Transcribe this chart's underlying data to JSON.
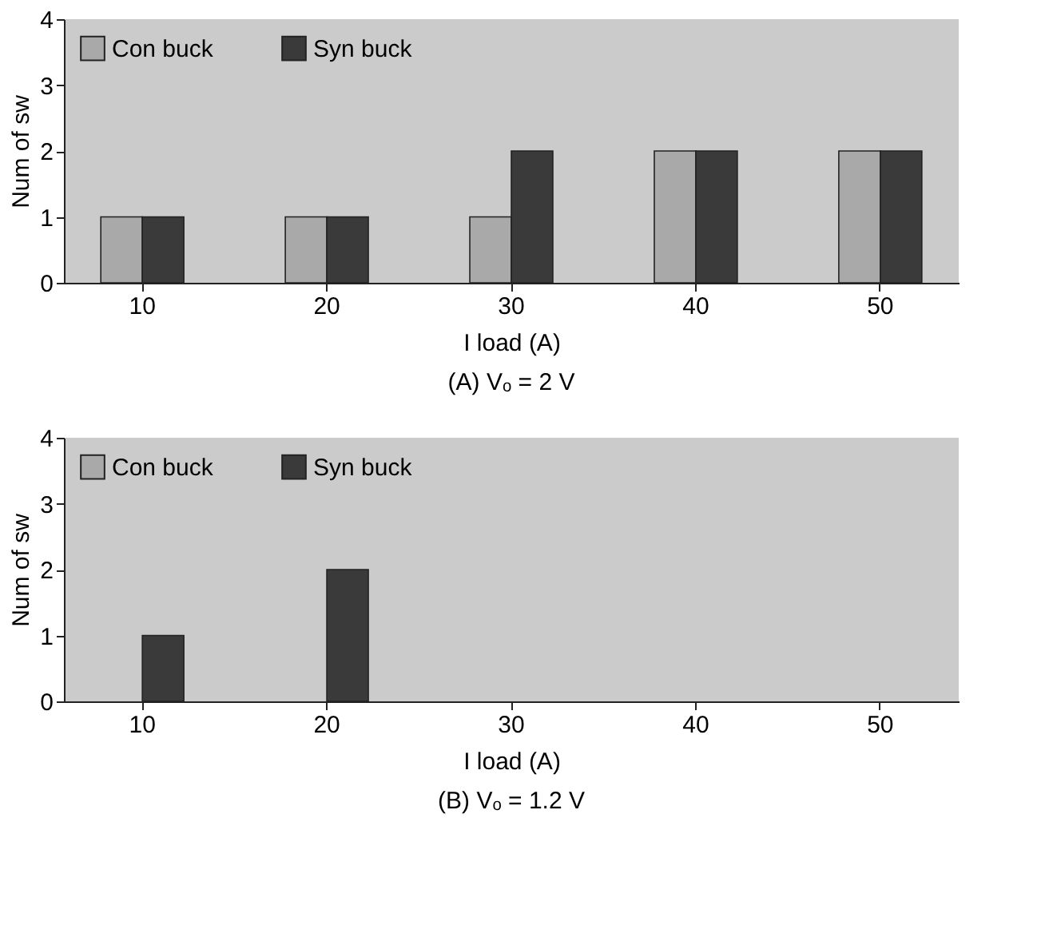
{
  "chart_data": [
    {
      "type": "bar",
      "title": "(A) Vₒ = 2 V",
      "xlabel": "I load (A)",
      "ylabel": "Num of sw",
      "categories": [
        "10",
        "20",
        "30",
        "40",
        "50"
      ],
      "ylim": [
        0,
        4
      ],
      "yticks": [
        0,
        1,
        2,
        3,
        4
      ],
      "grid": false,
      "legend": "top left",
      "series": [
        {
          "name": "Con buck",
          "color": "#a9a9a9",
          "values": [
            1,
            1,
            1,
            2,
            2
          ]
        },
        {
          "name": "Syn buck",
          "color": "#3a3a3a",
          "values": [
            1,
            1,
            2,
            2,
            2
          ]
        }
      ]
    },
    {
      "type": "bar",
      "title": "(B) Vₒ = 1.2 V",
      "xlabel": "I load (A)",
      "ylabel": "Num of sw",
      "categories": [
        "10",
        "20",
        "30",
        "40",
        "50"
      ],
      "ylim": [
        0,
        4
      ],
      "yticks": [
        0,
        1,
        2,
        3,
        4
      ],
      "grid": false,
      "legend": "top left",
      "series": [
        {
          "name": "Con buck",
          "color": "#a9a9a9",
          "values": [
            null,
            null,
            null,
            null,
            null
          ]
        },
        {
          "name": "Syn buck",
          "color": "#3a3a3a",
          "values": [
            1,
            2,
            null,
            null,
            null
          ]
        }
      ]
    }
  ]
}
